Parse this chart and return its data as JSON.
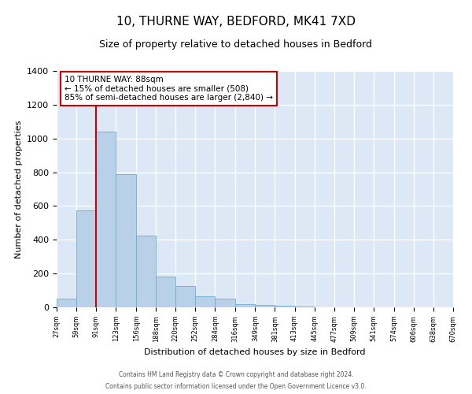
{
  "title": "10, THURNE WAY, BEDFORD, MK41 7XD",
  "subtitle": "Size of property relative to detached houses in Bedford",
  "xlabel": "Distribution of detached houses by size in Bedford",
  "ylabel": "Number of detached properties",
  "bar_color": "#b8d0e8",
  "bar_edge_color": "#6aaed6",
  "bg_color": "#dce8f5",
  "grid_color": "#ffffff",
  "vline_color": "#cc0000",
  "vline_x": 91,
  "annotation_title": "10 THURNE WAY: 88sqm",
  "annotation_line1": "← 15% of detached houses are smaller (508)",
  "annotation_line2": "85% of semi-detached houses are larger (2,840) →",
  "bin_edges": [
    27,
    59,
    91,
    123,
    156,
    188,
    220,
    252,
    284,
    316,
    349,
    381,
    413,
    445,
    477,
    509,
    541,
    574,
    606,
    638,
    670
  ],
  "counts": [
    50,
    575,
    1040,
    790,
    425,
    180,
    125,
    65,
    50,
    20,
    15,
    10,
    5,
    2,
    1,
    0,
    0,
    0,
    0,
    0
  ],
  "ylim": [
    0,
    1400
  ],
  "yticks": [
    0,
    200,
    400,
    600,
    800,
    1000,
    1200,
    1400
  ],
  "footer1": "Contains HM Land Registry data © Crown copyright and database right 2024.",
  "footer2": "Contains public sector information licensed under the Open Government Licence v3.0."
}
